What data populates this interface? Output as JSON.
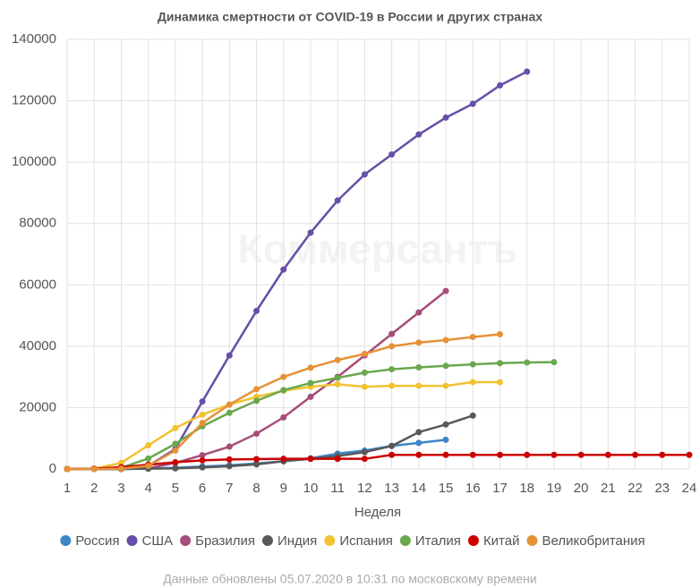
{
  "chart_data": {
    "type": "line",
    "title": "Динамика смертности от COVID-19 в России и других странах",
    "xlabel": "Неделя",
    "watermark": "Коммерсантъ",
    "note": "Данные обновлены 05.07.2020 в 10:31 по московскому времени",
    "x": [
      1,
      2,
      3,
      4,
      5,
      6,
      7,
      8,
      9,
      10,
      11,
      12,
      13,
      14,
      15,
      16,
      17,
      18,
      19,
      20,
      21,
      22,
      23,
      24
    ],
    "xlim": [
      1,
      24
    ],
    "xticks": [
      1,
      2,
      3,
      4,
      5,
      6,
      7,
      8,
      9,
      10,
      11,
      12,
      13,
      14,
      15,
      16,
      17,
      18,
      19,
      20,
      21,
      22,
      23,
      24
    ],
    "ylim": [
      0,
      140000
    ],
    "yticks": [
      0,
      20000,
      40000,
      60000,
      80000,
      100000,
      120000,
      140000
    ],
    "grid": true,
    "legend": "bottom",
    "series": [
      {
        "name": "Россия",
        "color": "#3d85c6",
        "values": [
          0,
          0,
          0,
          100,
          400,
          800,
          1200,
          1800,
          2500,
          3500,
          5000,
          6000,
          7500,
          8500,
          9500,
          null,
          null,
          null,
          null,
          null,
          null,
          null,
          null,
          null
        ]
      },
      {
        "name": "США",
        "color": "#674ea7",
        "values": [
          0,
          0,
          100,
          1000,
          6500,
          22000,
          37000,
          51500,
          65000,
          77000,
          87500,
          96000,
          102500,
          109000,
          114500,
          119000,
          125000,
          129500,
          null,
          null,
          null,
          null,
          null,
          null
        ]
      },
      {
        "name": "Бразилия",
        "color": "#a64d79",
        "values": [
          0,
          0,
          0,
          200,
          2000,
          4500,
          7300,
          11500,
          16800,
          23500,
          30000,
          37000,
          44000,
          51000,
          58000,
          null,
          null,
          null,
          null,
          null,
          null,
          null,
          null,
          null
        ]
      },
      {
        "name": "Индия",
        "color": "#595959",
        "values": [
          0,
          0,
          0,
          100,
          200,
          500,
          900,
          1500,
          2500,
          3300,
          4200,
          5500,
          7500,
          12000,
          14500,
          17400,
          null,
          null,
          null,
          null,
          null,
          null,
          null,
          null
        ]
      },
      {
        "name": "Испания",
        "color": "#f1c232",
        "values": [
          0,
          100,
          2000,
          7700,
          13300,
          17700,
          21000,
          23500,
          25500,
          26800,
          27600,
          26800,
          27100,
          27100,
          27100,
          28300,
          28300,
          null,
          null,
          null,
          null,
          null,
          null,
          null
        ]
      },
      {
        "name": "Италия",
        "color": "#6aa84f",
        "values": [
          0,
          0,
          400,
          3400,
          8200,
          13900,
          18300,
          22200,
          25700,
          28000,
          29700,
          31400,
          32500,
          33100,
          33600,
          34100,
          34500,
          34700,
          34800,
          null,
          null,
          null,
          null,
          null
        ]
      },
      {
        "name": "Китай",
        "color": "#cc0000",
        "values": [
          0,
          100,
          600,
          1400,
          2200,
          2800,
          3100,
          3200,
          3300,
          3300,
          3300,
          3300,
          4600,
          4600,
          4600,
          4600,
          4600,
          4600,
          4600,
          4600,
          4600,
          4600,
          4600,
          4600
        ]
      },
      {
        "name": "Великобритания",
        "color": "#e69138",
        "values": [
          0,
          0,
          100,
          1000,
          6000,
          15000,
          21000,
          26000,
          30000,
          33000,
          35500,
          37500,
          40000,
          41200,
          42000,
          43000,
          43900,
          null,
          null,
          null,
          null,
          null,
          null,
          null
        ]
      }
    ]
  }
}
